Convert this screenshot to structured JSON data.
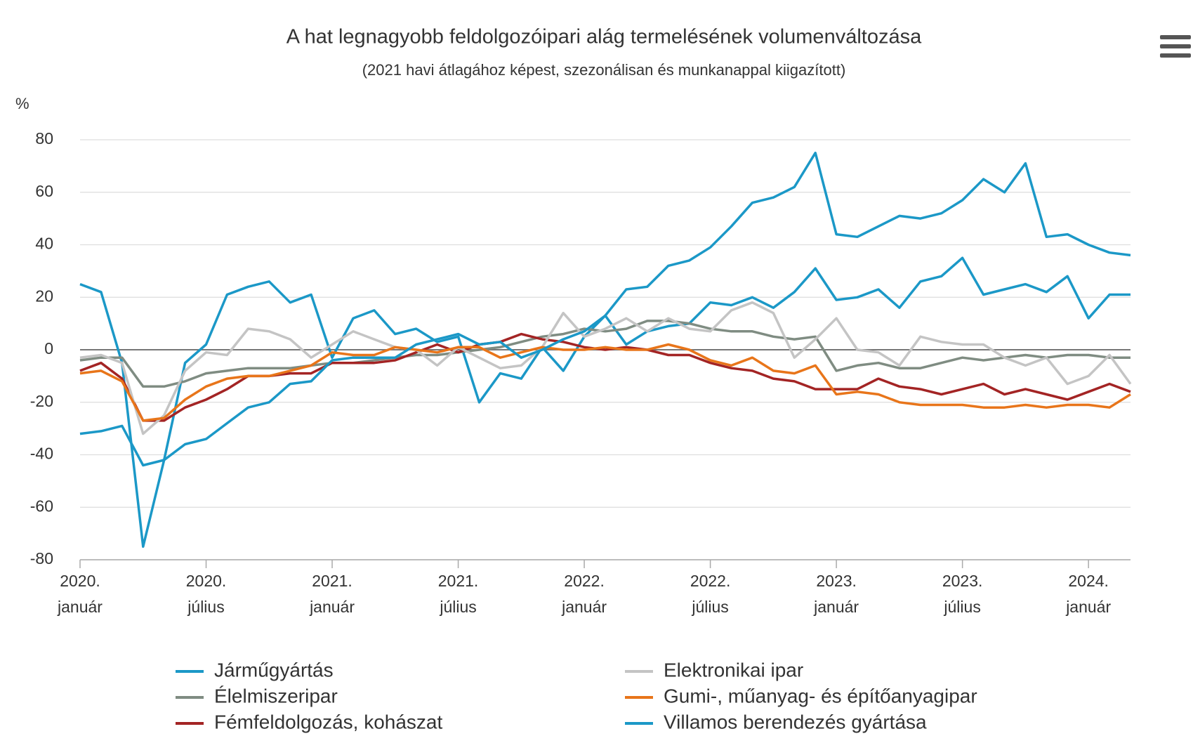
{
  "chart_data": {
    "type": "line",
    "title": "A hat legnagyobb feldolgozóipari alág termelésének volumenváltozása",
    "subtitle": "(2021 havi átlagához képest, szezonálisan és munkanappal kiigazított)",
    "y_label": "%",
    "categories": [
      "2020. január",
      null,
      null,
      null,
      null,
      null,
      "2020. július",
      null,
      null,
      null,
      null,
      null,
      "2021. január",
      null,
      null,
      null,
      null,
      null,
      "2021. július",
      null,
      null,
      null,
      null,
      null,
      "2022. január",
      null,
      null,
      null,
      null,
      null,
      "2022. július",
      null,
      null,
      null,
      null,
      null,
      "2023. január",
      null,
      null,
      null,
      null,
      null,
      "2023. július",
      null,
      null,
      null,
      null,
      null,
      "2024. január",
      null,
      null
    ],
    "ylim": [
      -80,
      80
    ],
    "yticks": [
      -80,
      -60,
      -40,
      -20,
      0,
      20,
      40,
      60,
      80
    ],
    "grid": true,
    "series": [
      {
        "name": "Járműgyártás",
        "color": "#1b98c7",
        "values": [
          25,
          22,
          -5,
          -75,
          -42,
          -5,
          2,
          21,
          24,
          26,
          18,
          21,
          -3,
          12,
          15,
          6,
          8,
          3,
          5,
          -20,
          -9,
          -11,
          1,
          -8,
          5,
          13,
          2,
          7,
          9,
          10,
          18,
          17,
          20,
          16,
          22,
          31,
          19,
          20,
          23,
          16,
          26,
          28,
          35,
          21,
          23,
          25,
          22,
          28,
          12,
          21,
          21
        ]
      },
      {
        "name": "Élelmiszeripar",
        "color": "#7f8c82",
        "values": [
          -4,
          -3,
          -3,
          -14,
          -14,
          -12,
          -9,
          -8,
          -7,
          -7,
          -7,
          -6,
          -5,
          -5,
          -4,
          -3,
          -2,
          -2,
          -1,
          0,
          1,
          3,
          5,
          6,
          8,
          7,
          8,
          11,
          11,
          10,
          8,
          7,
          7,
          5,
          4,
          5,
          -8,
          -6,
          -5,
          -7,
          -7,
          -5,
          -3,
          -4,
          -3,
          -2,
          -3,
          -2,
          -2,
          -3,
          -3
        ]
      },
      {
        "name": "Fémfeldolgozás, kohászat",
        "color": "#a32424",
        "values": [
          -8,
          -5,
          -11,
          -27,
          -27,
          -22,
          -19,
          -15,
          -10,
          -10,
          -9,
          -9,
          -5,
          -5,
          -5,
          -4,
          -1,
          2,
          -1,
          2,
          3,
          6,
          4,
          3,
          1,
          0,
          1,
          0,
          -2,
          -2,
          -5,
          -7,
          -8,
          -11,
          -12,
          -15,
          -15,
          -15,
          -11,
          -14,
          -15,
          -17,
          -15,
          -13,
          -17,
          -15,
          -17,
          -19,
          -16,
          -13,
          -16
        ]
      },
      {
        "name": "Elektronikai ipar",
        "color": "#c4c4c4",
        "values": [
          -3,
          -2,
          -5,
          -32,
          -25,
          -8,
          -1,
          -2,
          8,
          7,
          4,
          -3,
          2,
          7,
          4,
          1,
          0,
          -6,
          1,
          -3,
          -7,
          -6,
          1,
          14,
          5,
          8,
          12,
          7,
          12,
          8,
          7,
          15,
          18,
          14,
          -3,
          4,
          12,
          0,
          -1,
          -6,
          5,
          3,
          2,
          2,
          -3,
          -6,
          -3,
          -13,
          -10,
          -2,
          -13
        ]
      },
      {
        "name": "Gumi-, műanyag- és építőanyagipar",
        "color": "#e8751a",
        "values": [
          -9,
          -8,
          -12,
          -27,
          -26,
          -19,
          -14,
          -11,
          -10,
          -10,
          -8,
          -6,
          -1,
          -2,
          -2,
          1,
          0,
          -1,
          1,
          1,
          -3,
          -1,
          1,
          0,
          0,
          1,
          0,
          0,
          2,
          0,
          -4,
          -6,
          -3,
          -8,
          -9,
          -6,
          -17,
          -16,
          -17,
          -20,
          -21,
          -21,
          -21,
          -22,
          -22,
          -21,
          -22,
          -21,
          -21,
          -22,
          -17
        ]
      },
      {
        "name": "Villamos berendezés gyártása",
        "color": "#1b98c7",
        "values": [
          -32,
          -31,
          -29,
          -44,
          -42,
          -36,
          -34,
          -28,
          -22,
          -20,
          -13,
          -12,
          -4,
          -3,
          -3,
          -3,
          2,
          4,
          6,
          2,
          3,
          -3,
          0,
          4,
          7,
          13,
          23,
          24,
          32,
          34,
          39,
          47,
          56,
          58,
          62,
          75,
          44,
          43,
          47,
          51,
          50,
          52,
          57,
          65,
          60,
          71,
          43,
          44,
          40,
          37,
          36
        ]
      }
    ]
  }
}
